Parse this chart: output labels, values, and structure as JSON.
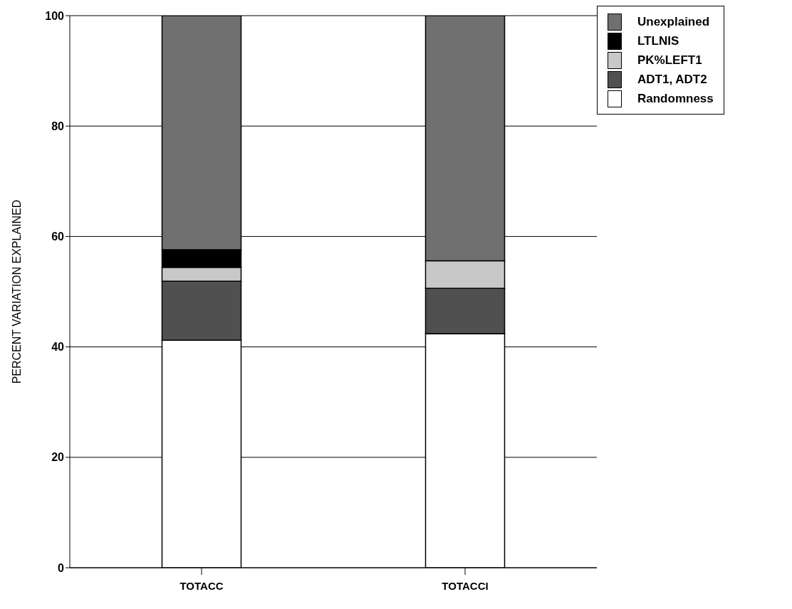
{
  "chart_data": {
    "type": "bar",
    "stacked": true,
    "ylabel": "PERCENT VARIATION EXPLAINED",
    "categories": [
      "TOTACC",
      "TOTACCI"
    ],
    "series": [
      {
        "name": "Randomness",
        "color": "#ffffff",
        "values": [
          41.2,
          42.4
        ]
      },
      {
        "name": "ADT1, ADT2",
        "color": "#505050",
        "values": [
          10.7,
          8.2
        ]
      },
      {
        "name": "PK%LEFT1",
        "color": "#c8c8c8",
        "values": [
          2.5,
          5.0
        ]
      },
      {
        "name": "LTLNIS",
        "color": "#000000",
        "values": [
          3.2,
          0
        ]
      },
      {
        "name": "Unexplained",
        "color": "#707070",
        "values": [
          42.4,
          44.4
        ]
      }
    ],
    "ylim": [
      0,
      100
    ],
    "yticks": [
      0,
      20,
      40,
      60,
      80,
      100
    ],
    "grid": "y",
    "legend": "top right"
  }
}
